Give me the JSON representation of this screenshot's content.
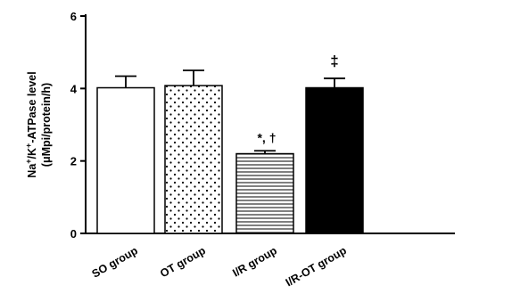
{
  "chart_data": {
    "type": "bar",
    "categories": [
      "SO group",
      "OT group",
      "I/R group",
      "I/R-OT group"
    ],
    "series": [
      {
        "values": [
          4.02,
          4.08,
          2.2,
          4.02
        ],
        "errors": [
          0.32,
          0.42,
          0.08,
          0.26
        ]
      }
    ],
    "fills": [
      "white",
      "dots",
      "horizontal-lines",
      "solid-black"
    ],
    "annotations": [
      "",
      "",
      "*, †",
      "‡"
    ],
    "ylabel": {
      "line1_parts": [
        {
          "text": "Na",
          "sup": false
        },
        {
          "text": "+",
          "sup": true
        },
        {
          "text": "/K",
          "sup": false
        },
        {
          "text": "+",
          "sup": true
        },
        {
          "text": "-ATPase level",
          "sup": false
        }
      ],
      "line2": "(μMpi/protein/h)"
    },
    "xlabel": "",
    "ylim": [
      0,
      6
    ],
    "yticks": [
      0,
      2,
      4,
      6
    ],
    "grid": false,
    "legend": "none"
  },
  "colors": {
    "axis": "#000000",
    "bar_edge": "#000000",
    "solid_fill": "#000000",
    "background": "#ffffff"
  }
}
